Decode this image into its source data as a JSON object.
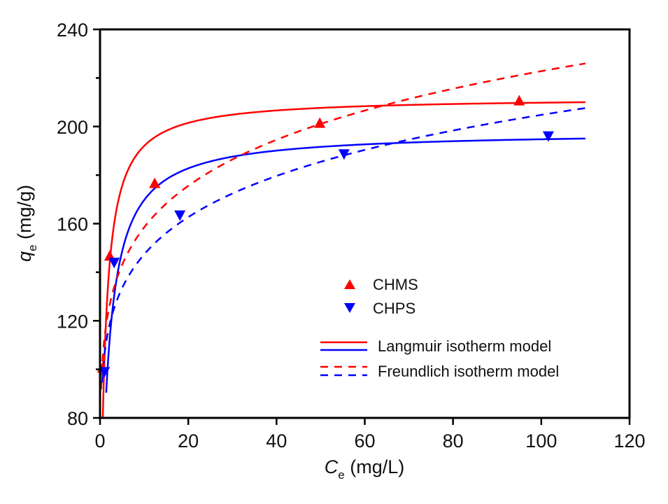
{
  "chart_data": {
    "type": "scatter",
    "title": "",
    "xlabel": {
      "main": "C",
      "sub": "e",
      "unit": " (mg/L)"
    },
    "ylabel": {
      "main": "q",
      "sub": "e",
      "unit": " (mg/g)"
    },
    "xlim": [
      0,
      120
    ],
    "ylim": [
      80,
      240
    ],
    "xticks": [
      0,
      20,
      40,
      60,
      80,
      100,
      120
    ],
    "yticks": [
      80,
      120,
      160,
      200,
      240
    ],
    "yminor": [
      100,
      140,
      180,
      220
    ],
    "grid": false,
    "legend_position": "center-right",
    "colors": {
      "CHMS": "#ff0000",
      "CHPS": "#0000ff",
      "axis": "#000000"
    },
    "series": [
      {
        "name": "CHMS",
        "marker": "triangle-up",
        "color": "#ff0000",
        "x": [
          0.6,
          2.2,
          12.4,
          49.8,
          95.0
        ],
        "y": [
          100.4,
          146.5,
          176.4,
          201.2,
          210.4
        ]
      },
      {
        "name": "CHPS",
        "marker": "triangle-down",
        "color": "#0000ff",
        "x": [
          1.0,
          3.2,
          18.1,
          55.3,
          101.6
        ],
        "y": [
          99.2,
          144.2,
          163.7,
          188.9,
          196.3
        ]
      }
    ],
    "fits": [
      {
        "series": "CHMS",
        "model": "Langmuir",
        "style": "solid",
        "color": "#ff0000",
        "qm": 212,
        "KL": 0.96,
        "xrange": [
          0.5,
          110
        ]
      },
      {
        "series": "CHPS",
        "model": "Langmuir",
        "style": "solid",
        "color": "#0000ff",
        "qm": 198,
        "KL": 0.6,
        "xrange": [
          1.4,
          110
        ]
      },
      {
        "series": "CHMS",
        "model": "Freundlich",
        "style": "dashed",
        "color": "#ff0000",
        "KF": 112.7,
        "n_inv": 0.148,
        "xrange": [
          0.25,
          110
        ]
      },
      {
        "series": "CHPS",
        "model": "Freundlich",
        "style": "dashed",
        "color": "#0000ff",
        "KF": 106.0,
        "n_inv": 0.143,
        "xrange": [
          0.45,
          110
        ]
      }
    ],
    "legend": {
      "markers": [
        {
          "label": "CHMS",
          "marker": "triangle-up",
          "color": "#ff0000"
        },
        {
          "label": "CHPS",
          "marker": "triangle-down",
          "color": "#0000ff"
        }
      ],
      "lines": [
        {
          "label": "Langmuir isotherm model",
          "style": "solid"
        },
        {
          "label": "Freundlich isotherm model",
          "style": "dashed"
        }
      ]
    }
  }
}
